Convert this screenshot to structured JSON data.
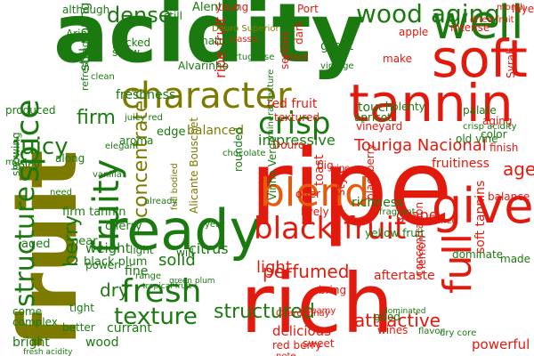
{
  "word_cloud": {
    "background": "#ffffff",
    "palette": {
      "green": "#1a7a10",
      "dark_green": "#0f5f06",
      "red": "#e21a0e",
      "olive": "#7d7a00",
      "orange": "#e85a0a"
    },
    "words": [
      {
        "text": "acidity",
        "color": "#1a7a10"
      },
      {
        "text": "fruit",
        "color": "#7d7a00"
      },
      {
        "text": "ripe",
        "color": "#e21a0e"
      },
      {
        "text": "rich",
        "color": "#e21a0e"
      },
      {
        "text": "tannin",
        "color": "#e21a0e"
      },
      {
        "text": "ready",
        "color": "#1a7a10"
      },
      {
        "text": "soft",
        "color": "#e21a0e"
      },
      {
        "text": "well",
        "color": "#1a7a10"
      },
      {
        "text": "blend",
        "color": "#e85a0a"
      },
      {
        "text": "give",
        "color": "#e21a0e"
      },
      {
        "text": "character",
        "color": "#7d7a00"
      },
      {
        "text": "spice",
        "color": "#1a7a10"
      },
      {
        "text": "fruity",
        "color": "#1a7a10"
      },
      {
        "text": "black fruit",
        "color": "#e21a0e"
      },
      {
        "text": "fresh",
        "color": "#1a7a10"
      },
      {
        "text": "structure",
        "color": "#1a7a10"
      },
      {
        "text": "crisp",
        "color": "#1a7a10"
      },
      {
        "text": "full",
        "color": "#e21a0e"
      },
      {
        "text": "wood aging",
        "color": "#1a7a10"
      },
      {
        "text": "dense",
        "color": "#1a7a10"
      },
      {
        "text": "concentrated",
        "color": "#7d7a00"
      },
      {
        "text": "juicy",
        "color": "#1a7a10"
      },
      {
        "text": "texture",
        "color": "#1a7a10"
      },
      {
        "text": "structured",
        "color": "#1a7a10"
      },
      {
        "text": "attractive",
        "color": "#e21a0e"
      },
      {
        "text": "perfumed",
        "color": "#e21a0e"
      },
      {
        "text": "Touriga Nacional",
        "color": "#e21a0e"
      },
      {
        "text": "firm",
        "color": "#1a7a10"
      },
      {
        "text": "berry",
        "color": "#1a7a10"
      },
      {
        "text": "freshness",
        "color": "#1a7a10"
      },
      {
        "text": "red fruit",
        "color": "#e21a0e"
      },
      {
        "text": "light",
        "color": "#e21a0e"
      },
      {
        "text": "aftertaste",
        "color": "#e21a0e"
      },
      {
        "text": "richness",
        "color": "#1a7a10"
      },
      {
        "text": "age",
        "color": "#e21a0e"
      },
      {
        "text": "solid",
        "color": "#1a7a10"
      },
      {
        "text": "dry",
        "color": "#1a7a10"
      },
      {
        "text": "weight",
        "color": "#1a7a10"
      },
      {
        "text": "still young",
        "color": "#1a7a10"
      },
      {
        "text": "ripe fruit",
        "color": "#e21a0e"
      },
      {
        "text": "showing",
        "color": "#1a7a10"
      },
      {
        "text": "impressive",
        "color": "#1a7a10"
      },
      {
        "text": "edge",
        "color": "#1a7a10"
      },
      {
        "text": "balanced",
        "color": "#7d7a00"
      },
      {
        "text": "toast",
        "color": "#e21a0e"
      },
      {
        "text": "cherry",
        "color": "#1a7a10"
      },
      {
        "text": "firm tannin",
        "color": "#1a7a10"
      },
      {
        "text": "black plum",
        "color": "#1a7a10"
      },
      {
        "text": "vineyard",
        "color": "#e21a0e"
      },
      {
        "text": "grape",
        "color": "#e21a0e"
      },
      {
        "text": "fruitiness",
        "color": "#e21a0e"
      },
      {
        "text": "soft tannins",
        "color": "#e21a0e"
      },
      {
        "text": "concentration",
        "color": "#e21a0e"
      },
      {
        "text": "style",
        "color": "#e21a0e"
      },
      {
        "text": "delicious",
        "color": "#e21a0e"
      },
      {
        "text": "bright",
        "color": "#1a7a10"
      },
      {
        "text": "wood",
        "color": "#1a7a10"
      },
      {
        "text": "citrus",
        "color": "#1a7a10"
      },
      {
        "text": "fine",
        "color": "#1a7a10"
      },
      {
        "text": "red berry",
        "color": "#e21a0e"
      },
      {
        "text": "powerful",
        "color": "#e21a0e"
      },
      {
        "text": "vanilla",
        "color": "#1a7a10"
      },
      {
        "text": "currant",
        "color": "#1a7a10"
      },
      {
        "text": "Alentejo",
        "color": "#1a7a10"
      },
      {
        "text": "Arinto",
        "color": "#1a7a10"
      },
      {
        "text": "Alvarinho",
        "color": "#1a7a10"
      },
      {
        "text": "Douro",
        "color": "#e21a0e"
      },
      {
        "text": "Syrah",
        "color": "#e21a0e"
      },
      {
        "text": "Vinho Verde",
        "color": "#1a7a10"
      },
      {
        "text": "Alicante Bouschet",
        "color": "#7d7a00"
      },
      {
        "text": "mineral texture",
        "color": "#1a7a10"
      },
      {
        "text": "full bodied",
        "color": "#7d7a00"
      },
      {
        "text": "aroma",
        "color": "#1a7a10"
      },
      {
        "text": "plenty",
        "color": "#1a7a10"
      },
      {
        "text": "great",
        "color": "#1a7a10"
      },
      {
        "text": "palate",
        "color": "#1a7a10"
      },
      {
        "text": "dark",
        "color": "#e21a0e"
      },
      {
        "text": "Port",
        "color": "#e21a0e"
      },
      {
        "text": "young",
        "color": "#e21a0e"
      },
      {
        "text": "textured",
        "color": "#e21a0e"
      },
      {
        "text": "wine",
        "color": "#e21a0e"
      },
      {
        "text": "black",
        "color": "#e21a0e"
      },
      {
        "text": "touch",
        "color": "#1a7a10"
      },
      {
        "text": "apricot",
        "color": "#1a7a10"
      },
      {
        "text": "finish",
        "color": "#e21a0e"
      },
      {
        "text": "balance",
        "color": "#e21a0e"
      },
      {
        "text": "lively",
        "color": "#e21a0e"
      },
      {
        "text": "offer",
        "color": "#e21a0e"
      },
      {
        "text": "big",
        "color": "#e21a0e"
      },
      {
        "text": "pear",
        "color": "#1a7a10"
      },
      {
        "text": "aged",
        "color": "#1a7a10"
      },
      {
        "text": "power",
        "color": "#1a7a10"
      },
      {
        "text": "complex",
        "color": "#1a7a10"
      },
      {
        "text": "come",
        "color": "#1a7a10"
      },
      {
        "text": "still",
        "color": "#1a7a10"
      },
      {
        "text": "mature",
        "color": "#1a7a10"
      },
      {
        "text": "show",
        "color": "#1a7a10"
      },
      {
        "text": "packed",
        "color": "#1a7a10"
      },
      {
        "text": "along",
        "color": "#1a7a10"
      },
      {
        "text": "spicy",
        "color": "#1a7a10"
      },
      {
        "text": "although",
        "color": "#1a7a10"
      },
      {
        "text": "produced",
        "color": "#1a7a10"
      },
      {
        "text": "much",
        "color": "#1a7a10"
      },
      {
        "text": "need",
        "color": "#1a7a10"
      },
      {
        "text": "color",
        "color": "#1a7a10"
      },
      {
        "text": "good",
        "color": "#1a7a10"
      },
      {
        "text": "note",
        "color": "#e21a0e"
      },
      {
        "text": "sweet",
        "color": "#e21a0e"
      },
      {
        "text": "bring",
        "color": "#e21a0e"
      },
      {
        "text": "rounded",
        "color": "#1a7a10"
      },
      {
        "text": "yellow fruit",
        "color": "#1a7a10"
      },
      {
        "text": "blackberry",
        "color": "#e21a0e"
      },
      {
        "text": "old vine",
        "color": "#1a7a10"
      },
      {
        "text": "Named",
        "color": "#e21a0e"
      },
      {
        "text": "made",
        "color": "#1a7a10"
      },
      {
        "text": "dominate",
        "color": "#1a7a10"
      },
      {
        "text": "intense",
        "color": "#e21a0e"
      },
      {
        "text": "make",
        "color": "#e21a0e"
      },
      {
        "text": "refreshing",
        "color": "#1a7a10"
      },
      {
        "text": "will",
        "color": "#1a7a10"
      },
      {
        "text": "light",
        "color": "#1a7a10"
      },
      {
        "text": "year",
        "color": "#1a7a10"
      },
      {
        "text": "tight",
        "color": "#1a7a10"
      },
      {
        "text": "better",
        "color": "#1a7a10"
      },
      {
        "text": "fresh acidity",
        "color": "#1a7a10"
      },
      {
        "text": "tropical fruit",
        "color": "#1a7a10"
      },
      {
        "text": "green plum",
        "color": "#1a7a10"
      },
      {
        "text": "Chardonnay",
        "color": "#e21a0e"
      },
      {
        "text": "wines",
        "color": "#e21a0e"
      },
      {
        "text": "lemon",
        "color": "#e21a0e"
      },
      {
        "text": "creamy",
        "color": "#e21a0e"
      },
      {
        "text": "clean",
        "color": "#1a7a10"
      },
      {
        "text": "serious",
        "color": "#e21a0e"
      },
      {
        "text": "classic",
        "color": "#e21a0e"
      },
      {
        "text": "apple",
        "color": "#e21a0e"
      },
      {
        "text": "month",
        "color": "#e21a0e"
      },
      {
        "text": "layer",
        "color": "#e21a0e"
      },
      {
        "text": "aging",
        "color": "#e21a0e"
      },
      {
        "text": "elegant",
        "color": "#1a7a10"
      },
      {
        "text": "already",
        "color": "#1a7a10"
      },
      {
        "text": "crisp acidity",
        "color": "#1a7a10"
      },
      {
        "text": "juicy red",
        "color": "#1a7a10"
      },
      {
        "text": "dominated",
        "color": "#1a7a10"
      },
      {
        "text": "flavor",
        "color": "#1a7a10"
      },
      {
        "text": "fragrant",
        "color": "#1a7a10"
      },
      {
        "text": "chocolate",
        "color": "#1a7a10"
      },
      {
        "text": "vintage",
        "color": "#1a7a10"
      },
      {
        "text": "Portuguese",
        "color": "#1a7a10"
      },
      {
        "text": "dry core",
        "color": "#1a7a10"
      },
      {
        "text": "Douro Superior",
        "color": "#7d7a00"
      },
      {
        "text": "dried fruit",
        "color": "#e21a0e"
      },
      {
        "text": "range",
        "color": "#1a7a10"
      }
    ]
  }
}
